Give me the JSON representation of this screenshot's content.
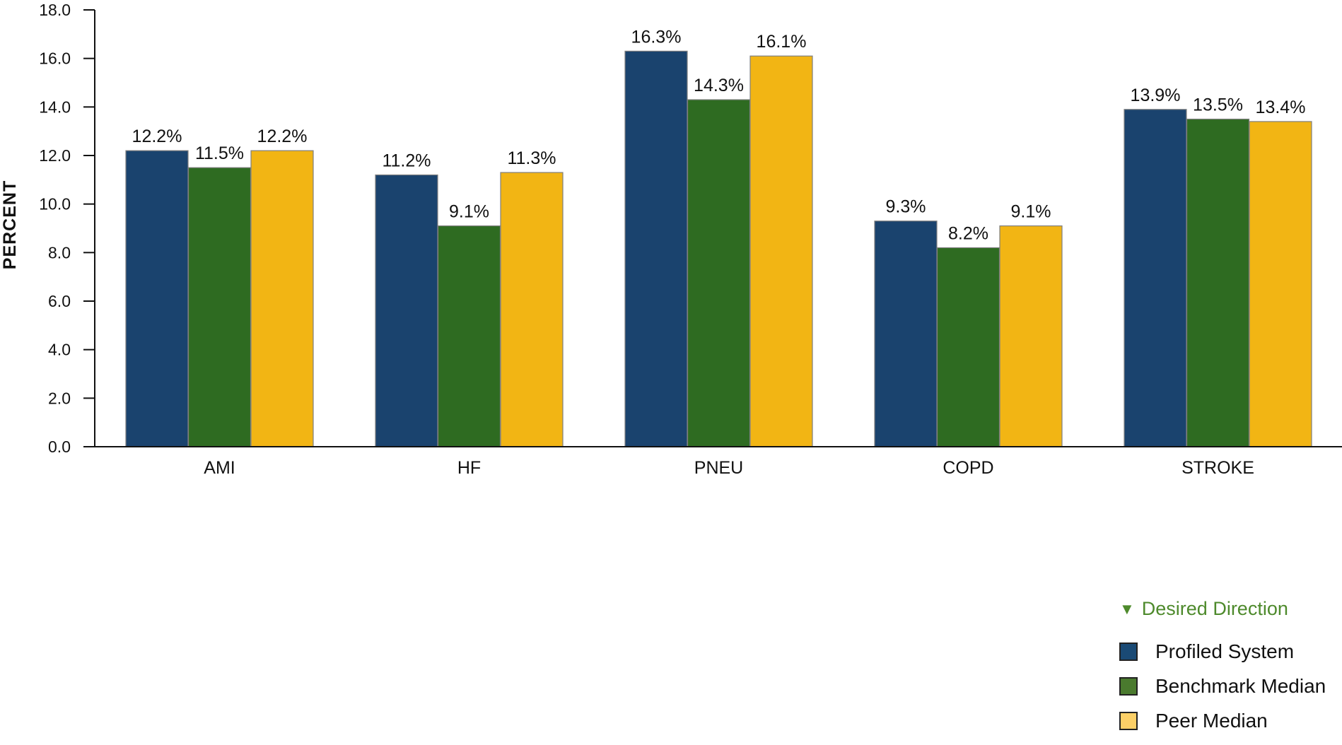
{
  "chart_data": {
    "type": "bar",
    "title": "",
    "xlabel": "",
    "ylabel": "PERCENT",
    "ylim": [
      0,
      18
    ],
    "yticks": [
      "0.0",
      "2.0",
      "4.0",
      "6.0",
      "8.0",
      "10.0",
      "12.0",
      "14.0",
      "16.0",
      "18.0"
    ],
    "categories": [
      "AMI",
      "HF",
      "PNEU",
      "COPD",
      "STROKE"
    ],
    "series": [
      {
        "name": "Profiled System",
        "color": "#1a436e",
        "values": [
          12.2,
          11.2,
          16.3,
          9.3,
          13.9
        ],
        "labels": [
          "12.2%",
          "11.2%",
          "16.3%",
          "9.3%",
          "13.9%"
        ]
      },
      {
        "name": "Benchmark Median",
        "color": "#2e6b21",
        "values": [
          11.5,
          9.1,
          14.3,
          8.2,
          13.5
        ],
        "labels": [
          "11.5%",
          "9.1%",
          "14.3%",
          "8.2%",
          "13.5%"
        ]
      },
      {
        "name": "Peer Median",
        "color": "#f2b514",
        "values": [
          12.2,
          11.3,
          16.1,
          9.1,
          13.4
        ],
        "labels": [
          "12.2%",
          "11.3%",
          "16.1%",
          "9.1%",
          "13.4%"
        ]
      }
    ],
    "legend": {
      "placement": "bottom-right",
      "direction_label": "Desired Direction",
      "direction_icon": "triangle-down-icon",
      "direction_color": "#4e8a2c",
      "items": [
        {
          "label": "Profiled System",
          "color": "#1a4a75"
        },
        {
          "label": "Benchmark Median",
          "color": "#4a7a2e"
        },
        {
          "label": "Peer Median",
          "color": "#fcd067"
        }
      ]
    }
  }
}
